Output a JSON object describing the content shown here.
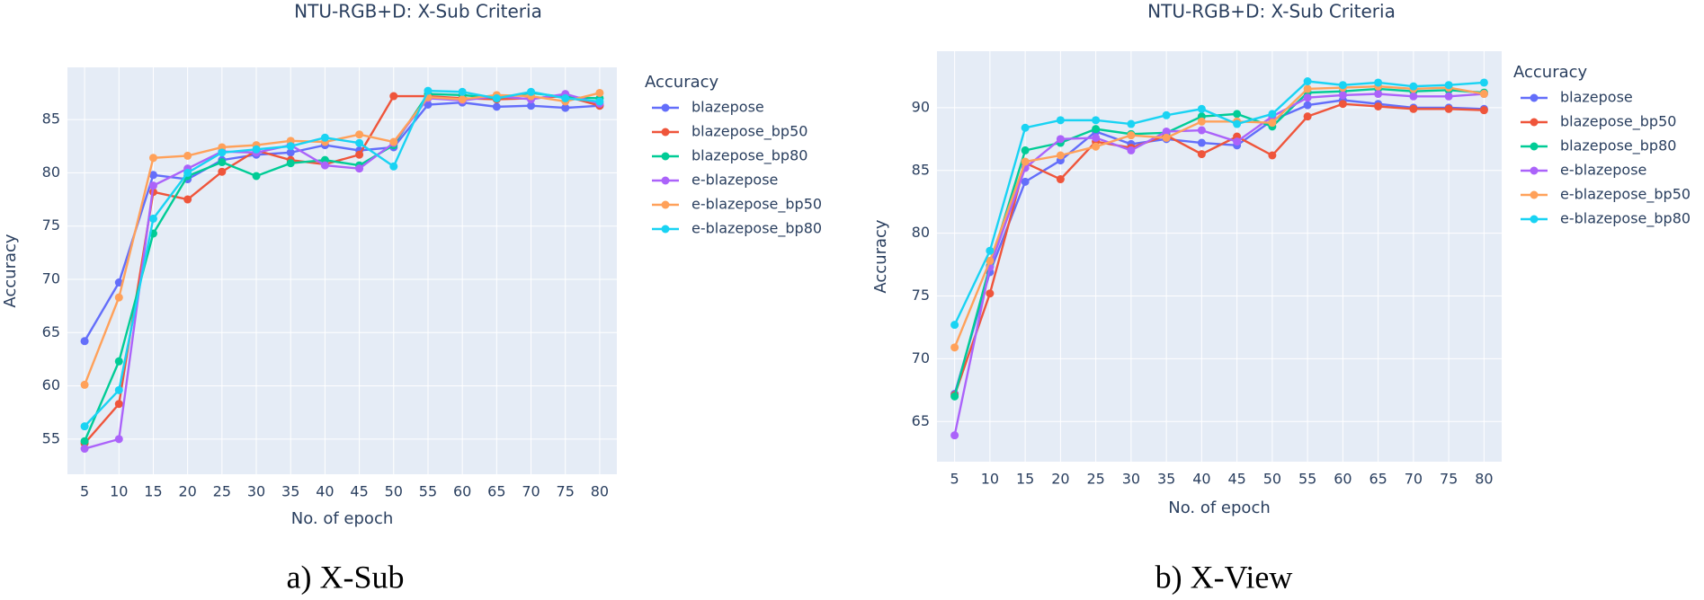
{
  "chart_data": [
    {
      "type": "line",
      "title": "NTU-RGB+D: X-Sub Criteria",
      "x_label": "No. of epoch",
      "y_label": "Accuracy",
      "legend_title": "Accuracy",
      "caption": "a) X-Sub",
      "grid": true,
      "categories": [
        5,
        10,
        15,
        20,
        25,
        30,
        35,
        40,
        45,
        50,
        55,
        60,
        65,
        70,
        75,
        80
      ],
      "ylim": [
        51.7,
        89.9
      ],
      "yticks": [
        55,
        60,
        65,
        70,
        75,
        80,
        85
      ],
      "series": [
        {
          "name": "blazepose",
          "color": "#636efa",
          "values": [
            64.2,
            69.7,
            79.8,
            79.4,
            81.2,
            81.7,
            81.9,
            82.6,
            82.1,
            82.4,
            86.4,
            86.6,
            86.2,
            86.3,
            86.1,
            86.3
          ]
        },
        {
          "name": "blazepose_bp50",
          "color": "#ef553b",
          "values": [
            54.6,
            58.3,
            78.2,
            77.5,
            80.1,
            82.1,
            81.2,
            80.8,
            81.7,
            87.2,
            87.2,
            87.0,
            86.9,
            87.0,
            87.2,
            86.3
          ]
        },
        {
          "name": "blazepose_bp80",
          "color": "#00cc96",
          "values": [
            54.8,
            62.3,
            74.3,
            79.7,
            81.0,
            79.7,
            80.9,
            81.2,
            80.7,
            82.6,
            87.4,
            87.3,
            87.0,
            87.5,
            87.1,
            87.0
          ]
        },
        {
          "name": "e-blazepose",
          "color": "#ab63fa",
          "values": [
            54.1,
            55.0,
            78.8,
            80.4,
            82.0,
            81.9,
            82.6,
            80.7,
            80.4,
            82.8,
            87.0,
            86.8,
            87.2,
            86.9,
            87.4,
            86.5
          ]
        },
        {
          "name": "e-blazepose_bp50",
          "color": "#ffa15a",
          "values": [
            60.1,
            68.3,
            81.4,
            81.6,
            82.4,
            82.6,
            83.0,
            82.9,
            83.6,
            82.9,
            87.1,
            86.9,
            87.3,
            87.2,
            86.7,
            87.5
          ]
        },
        {
          "name": "e-blazepose_bp80",
          "color": "#19d3f3",
          "values": [
            56.2,
            59.6,
            75.7,
            80.0,
            81.9,
            82.2,
            82.5,
            83.3,
            82.8,
            80.6,
            87.7,
            87.6,
            87.0,
            87.6,
            87.0,
            86.7
          ]
        }
      ]
    },
    {
      "type": "line",
      "title": "NTU-RGB+D: X-Sub Criteria",
      "x_label": "No. of epoch",
      "y_label": "Accuracy",
      "legend_title": "Accuracy",
      "caption": "b) X-View",
      "grid": true,
      "categories": [
        5,
        10,
        15,
        20,
        25,
        30,
        35,
        40,
        45,
        50,
        55,
        60,
        65,
        70,
        75,
        80
      ],
      "ylim": [
        61.8,
        94.5
      ],
      "yticks": [
        65,
        70,
        75,
        80,
        85,
        90
      ],
      "series": [
        {
          "name": "blazepose",
          "color": "#636efa",
          "values": [
            67.2,
            76.9,
            84.1,
            85.8,
            88.1,
            87.1,
            87.5,
            87.2,
            87.0,
            89.0,
            90.2,
            90.6,
            90.3,
            90.0,
            90.0,
            89.9
          ]
        },
        {
          "name": "blazepose_bp50",
          "color": "#ef553b",
          "values": [
            67.1,
            75.2,
            85.6,
            84.3,
            87.3,
            86.8,
            87.8,
            86.3,
            87.7,
            86.2,
            89.3,
            90.3,
            90.1,
            89.9,
            89.9,
            89.8
          ]
        },
        {
          "name": "blazepose_bp80",
          "color": "#00cc96",
          "values": [
            67.0,
            77.4,
            86.6,
            87.2,
            88.3,
            87.9,
            88.0,
            89.3,
            89.5,
            88.5,
            91.2,
            91.3,
            91.5,
            91.3,
            91.4,
            91.2
          ]
        },
        {
          "name": "e-blazepose",
          "color": "#ab63fa",
          "values": [
            63.9,
            77.3,
            85.2,
            87.5,
            87.6,
            86.6,
            88.1,
            88.2,
            87.3,
            89.3,
            90.8,
            91.0,
            91.1,
            90.9,
            90.9,
            91.1
          ]
        },
        {
          "name": "e-blazepose_bp50",
          "color": "#ffa15a",
          "values": [
            70.9,
            77.8,
            85.7,
            86.2,
            86.9,
            87.8,
            87.6,
            88.9,
            88.9,
            88.8,
            91.5,
            91.6,
            91.7,
            91.5,
            91.6,
            91.1
          ]
        },
        {
          "name": "e-blazepose_bp80",
          "color": "#19d3f3",
          "values": [
            72.7,
            78.6,
            88.4,
            89.0,
            89.0,
            88.7,
            89.4,
            89.9,
            88.7,
            89.5,
            92.1,
            91.8,
            92.0,
            91.7,
            91.8,
            92.0
          ]
        }
      ]
    }
  ]
}
